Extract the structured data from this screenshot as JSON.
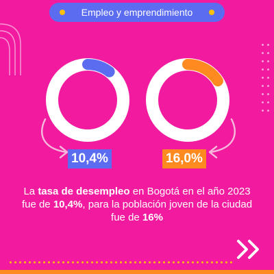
{
  "header": {
    "title": "Empleo y emprendimiento",
    "accent_color": "#5B6CF0",
    "dot_color": "#FFC107"
  },
  "stats": [
    {
      "label": "10,4%",
      "value": 10.4,
      "color": "#5B6CF0"
    },
    {
      "label": "16,0%",
      "value": 16.0,
      "color": "#FF8A1F"
    }
  ],
  "caption": {
    "p1": "La ",
    "b1": "tasa de desempleo",
    "p2": " en Bogotá en el año 2023 fue de ",
    "b2": "10,4%",
    "p3": ", para la población joven de la ciudad fue de ",
    "b3": "16%"
  },
  "icons": {
    "next": "double-chevron-right-icon",
    "arrow": "curved-arrow-icon"
  },
  "background_color": "#F21BA0"
}
